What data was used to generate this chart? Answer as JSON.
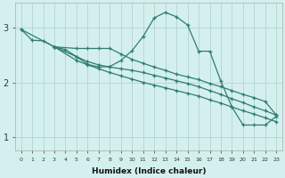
{
  "xlabel": "Humidex (Indice chaleur)",
  "background_color": "#d4f0ee",
  "line_color": "#2e7d6e",
  "grid_color": "#b8d8d4",
  "xlim": [
    -0.5,
    23.5
  ],
  "ylim": [
    0.75,
    3.45
  ],
  "ytick_values": [
    1,
    2,
    3
  ],
  "line1_x": [
    0,
    1,
    2,
    3,
    4,
    5,
    6,
    7,
    8,
    9,
    10,
    11,
    12,
    13,
    14,
    15,
    16,
    17,
    18,
    19,
    20,
    21,
    22,
    23
  ],
  "line1_y": [
    2.97,
    2.77,
    2.76,
    2.65,
    2.6,
    2.47,
    2.33,
    2.28,
    2.29,
    2.4,
    2.58,
    2.84,
    3.18,
    3.28,
    3.2,
    3.05,
    2.57,
    2.57,
    2.02,
    1.55,
    1.22,
    1.22,
    1.22,
    1.38
  ],
  "line2_x": [
    0,
    3,
    5,
    6,
    7,
    8,
    9,
    10,
    11,
    12,
    13,
    14,
    15,
    16,
    17,
    18,
    19,
    20,
    21,
    22,
    23
  ],
  "line2_y": [
    2.97,
    2.65,
    2.62,
    2.62,
    2.62,
    2.62,
    2.52,
    2.42,
    2.35,
    2.28,
    2.22,
    2.15,
    2.1,
    2.05,
    1.98,
    1.92,
    1.85,
    1.78,
    1.72,
    1.65,
    1.4
  ],
  "line3_x": [
    3,
    5,
    6,
    7,
    8,
    9,
    10,
    11,
    12,
    13,
    14,
    15,
    16,
    17,
    18,
    19,
    20,
    21,
    22,
    23
  ],
  "line3_y": [
    2.65,
    2.47,
    2.38,
    2.32,
    2.28,
    2.25,
    2.22,
    2.18,
    2.13,
    2.08,
    2.03,
    1.98,
    1.92,
    1.85,
    1.78,
    1.7,
    1.63,
    1.55,
    1.48,
    1.4
  ],
  "line4_x": [
    3,
    5,
    6,
    7,
    8,
    9,
    10,
    11,
    12,
    13,
    14,
    15,
    16,
    17,
    18,
    19,
    20,
    21,
    22,
    23
  ],
  "line4_y": [
    2.65,
    2.4,
    2.32,
    2.25,
    2.18,
    2.12,
    2.06,
    2.0,
    1.95,
    1.9,
    1.85,
    1.8,
    1.75,
    1.68,
    1.62,
    1.55,
    1.48,
    1.42,
    1.35,
    1.28
  ]
}
